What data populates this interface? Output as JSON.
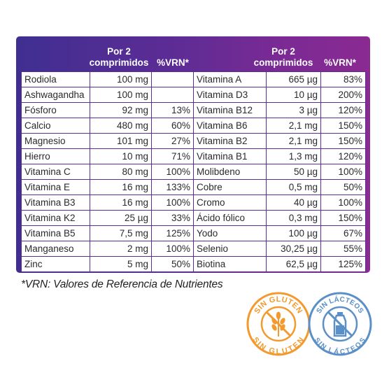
{
  "header": {
    "left_qty_line1": "Por 2",
    "left_qty_line2": "comprimidos",
    "left_vrn": "%VRN*",
    "right_qty_line1": "Por 2",
    "right_qty_line2": "comprimidos",
    "right_vrn": "%VRN*"
  },
  "rows": [
    {
      "l_name": "Rodiola",
      "l_qty": "100 mg",
      "l_vrn": "",
      "r_name": "Vitamina A",
      "r_qty": "665 µg",
      "r_vrn": "83%"
    },
    {
      "l_name": "Ashwagandha",
      "l_qty": "100 mg",
      "l_vrn": "",
      "r_name": "Vitamina D3",
      "r_qty": "10 µg",
      "r_vrn": "200%"
    },
    {
      "l_name": "Fósforo",
      "l_qty": "92 mg",
      "l_vrn": "13%",
      "r_name": "Vitamina B12",
      "r_qty": "3 µg",
      "r_vrn": "120%"
    },
    {
      "l_name": "Calcio",
      "l_qty": "480 mg",
      "l_vrn": "60%",
      "r_name": "Vitamina B6",
      "r_qty": "2,1 mg",
      "r_vrn": "150%"
    },
    {
      "l_name": "Magnesio",
      "l_qty": "101 mg",
      "l_vrn": "27%",
      "r_name": "Vitamina B2",
      "r_qty": "2,1 mg",
      "r_vrn": "150%"
    },
    {
      "l_name": "Hierro",
      "l_qty": "10 mg",
      "l_vrn": "71%",
      "r_name": "Vitamina B1",
      "r_qty": "1,3 mg",
      "r_vrn": "120%"
    },
    {
      "l_name": "Vitamina C",
      "l_qty": "80 mg",
      "l_vrn": "100%",
      "r_name": "Molibdeno",
      "r_qty": "50 µg",
      "r_vrn": "100%"
    },
    {
      "l_name": "Vitamina E",
      "l_qty": "16 mg",
      "l_vrn": "133%",
      "r_name": "Cobre",
      "r_qty": "0,5 mg",
      "r_vrn": "50%"
    },
    {
      "l_name": "Vitamina B3",
      "l_qty": "16 mg",
      "l_vrn": "100%",
      "r_name": "Cromo",
      "r_qty": "40 µg",
      "r_vrn": "100%"
    },
    {
      "l_name": "Vitamina K2",
      "l_qty": "25 µg",
      "l_vrn": "33%",
      "r_name": "Ácido fólico",
      "r_qty": "0,3 mg",
      "r_vrn": "150%"
    },
    {
      "l_name": "Vitamina B5",
      "l_qty": "7,5 mg",
      "l_vrn": "125%",
      "r_name": "Yodo",
      "r_qty": "100 µg",
      "r_vrn": "67%"
    },
    {
      "l_name": "Manganeso",
      "l_qty": "2 mg",
      "l_vrn": "100%",
      "r_name": "Selenio",
      "r_qty": "30,25 µg",
      "r_vrn": "55%"
    },
    {
      "l_name": "Zinc",
      "l_qty": "5 mg",
      "l_vrn": "50%",
      "r_name": "Biotina",
      "r_qty": "62,5 µg",
      "r_vrn": "125%"
    }
  ],
  "footnote": "*VRN: Valores de Referencia de Nutrientes",
  "badges": {
    "gluten_top": "SIN GLUTEN",
    "gluten_bottom": "SIN GLUTEN",
    "gluten_color": "#f39a2e",
    "gluten_icon": "wheat-crossed-icon",
    "lactose_top": "SIN LÁCTEOS",
    "lactose_bottom": "SIN LÁCTEOS",
    "lactose_color": "#5b8fc7",
    "lactose_icon": "milk-bottle-crossed-icon"
  },
  "colors": {
    "table_border": "#5a2d94",
    "header_gradient_start": "#3f2f91",
    "header_gradient_end": "#8a2a92"
  }
}
